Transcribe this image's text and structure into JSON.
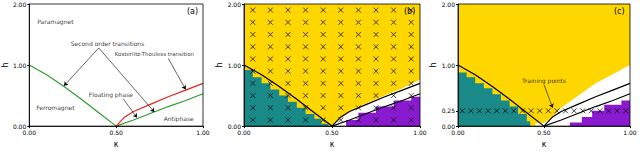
{
  "chart_data": [
    {
      "type": "line",
      "title": "(a)",
      "xlabel": "κ",
      "ylabel": "h",
      "xlim": [
        0,
        1
      ],
      "ylim": [
        0,
        2
      ],
      "xticks": [
        {
          "value": 0,
          "label": "0.00"
        },
        {
          "value": 0.5,
          "label": "0.50"
        },
        {
          "value": 1,
          "label": "1.00"
        }
      ],
      "yticks": [
        {
          "value": 0,
          "label": "0.00"
        },
        {
          "value": 1,
          "label": "1.00"
        },
        {
          "value": 2,
          "label": "2.00"
        }
      ],
      "series": [
        {
          "type": "line",
          "color": "#2e9e2e",
          "x": [
            0,
            0.1,
            0.2,
            0.3,
            0.4,
            0.5
          ],
          "values": [
            1.0,
            0.84,
            0.65,
            0.44,
            0.22,
            0.0
          ]
        },
        {
          "type": "line",
          "color": "#2e9e2e",
          "x": [
            0.5,
            0.6,
            0.7,
            0.8,
            0.9,
            1.0
          ],
          "values": [
            0,
            0.1,
            0.21,
            0.32,
            0.42,
            0.53
          ]
        },
        {
          "type": "line",
          "color": "#e8251c",
          "x": [
            0.5,
            0.55,
            0.6,
            0.7,
            0.8,
            0.9,
            1.0
          ],
          "values": [
            0,
            0.15,
            0.24,
            0.36,
            0.48,
            0.59,
            0.7
          ]
        }
      ],
      "annotations": [
        "Paramagnet",
        "Ferromagnet",
        "Floating phase",
        "Antiphase",
        "Second order transitions",
        "Kosterlitz-Thouless transition"
      ]
    },
    {
      "type": "region",
      "title": "(b)",
      "xlabel": "κ",
      "ylabel": "h",
      "xlim": [
        0,
        1
      ],
      "ylim": [
        0,
        2
      ],
      "xticks": [
        {
          "value": 0,
          "label": "0.00"
        },
        {
          "value": 0.5,
          "label": "0.50"
        },
        {
          "value": 1,
          "label": "1.00"
        }
      ],
      "yticks": [
        {
          "value": 0,
          "label": "0.00"
        },
        {
          "value": 1,
          "label": "1.00"
        },
        {
          "value": 2,
          "label": "2.00"
        }
      ],
      "regions": [
        {
          "color": "#ffd700",
          "x": [
            0,
            1,
            1,
            0
          ],
          "values": [
            0,
            0,
            2,
            2
          ]
        },
        {
          "color": "#ffffff",
          "x": [
            0.5,
            1,
            1,
            0.9,
            0.8,
            0.7,
            0.6,
            0.55
          ],
          "values": [
            0,
            0,
            0.76,
            0.62,
            0.5,
            0.38,
            0.24,
            0.12
          ]
        },
        {
          "color": "#1a8a88",
          "x": [
            0,
            0.48,
            0.48,
            0.44,
            0.44,
            0.4,
            0.4,
            0.35,
            0.35,
            0.3,
            0.3,
            0.25,
            0.25,
            0.2,
            0.2,
            0.15,
            0.15,
            0.1,
            0.1,
            0.05,
            0.05,
            0
          ],
          "values": [
            0,
            0,
            0.04,
            0.04,
            0.12,
            0.12,
            0.2,
            0.2,
            0.3,
            0.3,
            0.4,
            0.4,
            0.5,
            0.5,
            0.6,
            0.6,
            0.7,
            0.7,
            0.8,
            0.8,
            0.92,
            0.92
          ]
        },
        {
          "color": "#8a1ad0",
          "x": [
            0.58,
            1,
            1,
            0.95,
            0.95,
            0.85,
            0.85,
            0.75,
            0.75,
            0.65,
            0.65,
            0.58
          ],
          "values": [
            0,
            0,
            0.48,
            0.48,
            0.42,
            0.42,
            0.32,
            0.32,
            0.22,
            0.22,
            0.1,
            0.1
          ]
        }
      ],
      "series": [
        {
          "type": "line",
          "color": "#000000",
          "x": [
            0,
            0.1,
            0.2,
            0.3,
            0.4,
            0.5
          ],
          "values": [
            1.0,
            0.84,
            0.65,
            0.44,
            0.22,
            0.0
          ]
        },
        {
          "type": "line",
          "color": "#000000",
          "x": [
            0.5,
            0.6,
            0.7,
            0.8,
            0.9,
            1.0
          ],
          "values": [
            0,
            0.1,
            0.21,
            0.32,
            0.42,
            0.53
          ]
        },
        {
          "type": "line",
          "color": "#000000",
          "x": [
            0.5,
            0.55,
            0.6,
            0.7,
            0.8,
            0.9,
            1.0
          ],
          "values": [
            0,
            0.15,
            0.24,
            0.36,
            0.48,
            0.59,
            0.7
          ]
        },
        {
          "type": "scatter",
          "marker": "x",
          "color": "#000000",
          "x": [
            0.05,
            0.15,
            0.25,
            0.35,
            0.45,
            0.55,
            0.65,
            0.75,
            0.85,
            0.95,
            0.05,
            0.15,
            0.25,
            0.35,
            0.45,
            0.55,
            0.65,
            0.75,
            0.85,
            0.95,
            0.05,
            0.15,
            0.25,
            0.35,
            0.45,
            0.55,
            0.65,
            0.75,
            0.85,
            0.95,
            0.05,
            0.15,
            0.25,
            0.35,
            0.45,
            0.55,
            0.65,
            0.75,
            0.85,
            0.95,
            0.05,
            0.15,
            0.25,
            0.35,
            0.45,
            0.55,
            0.65,
            0.75,
            0.85,
            0.95,
            0.05,
            0.15,
            0.25,
            0.35,
            0.45,
            0.55,
            0.65,
            0.75,
            0.85,
            0.95,
            0.05,
            0.15,
            0.25,
            0.35,
            0.45,
            0.55,
            0.65,
            0.75,
            0.85,
            0.95,
            0.05,
            0.15,
            0.25,
            0.35,
            0.45,
            0.55,
            0.65,
            0.75,
            0.85,
            0.95,
            0.05,
            0.15,
            0.25,
            0.35,
            0.45,
            0.55,
            0.65,
            0.75,
            0.85,
            0.95,
            0.05,
            0.15,
            0.25,
            0.35,
            0.45,
            0.55,
            0.65,
            0.75,
            0.85,
            0.95
          ],
          "values": [
            0.1,
            0.1,
            0.1,
            0.1,
            0.1,
            0.1,
            0.1,
            0.1,
            0.1,
            0.1,
            0.3,
            0.3,
            0.3,
            0.3,
            0.3,
            0.3,
            0.3,
            0.3,
            0.3,
            0.3,
            0.5,
            0.5,
            0.5,
            0.5,
            0.5,
            0.5,
            0.5,
            0.5,
            0.5,
            0.5,
            0.7,
            0.7,
            0.7,
            0.7,
            0.7,
            0.7,
            0.7,
            0.7,
            0.7,
            0.7,
            0.9,
            0.9,
            0.9,
            0.9,
            0.9,
            0.9,
            0.9,
            0.9,
            0.9,
            0.9,
            1.1,
            1.1,
            1.1,
            1.1,
            1.1,
            1.1,
            1.1,
            1.1,
            1.1,
            1.1,
            1.3,
            1.3,
            1.3,
            1.3,
            1.3,
            1.3,
            1.3,
            1.3,
            1.3,
            1.3,
            1.5,
            1.5,
            1.5,
            1.5,
            1.5,
            1.5,
            1.5,
            1.5,
            1.5,
            1.5,
            1.7,
            1.7,
            1.7,
            1.7,
            1.7,
            1.7,
            1.7,
            1.7,
            1.7,
            1.7,
            1.9,
            1.9,
            1.9,
            1.9,
            1.9,
            1.9,
            1.9,
            1.9,
            1.9,
            1.9
          ]
        }
      ]
    },
    {
      "type": "region",
      "title": "(c)",
      "xlabel": "κ",
      "ylabel": "h",
      "xlim": [
        0,
        1
      ],
      "ylim": [
        0,
        2
      ],
      "xticks": [
        {
          "value": 0,
          "label": "0.00"
        },
        {
          "value": 0.5,
          "label": "0.50"
        },
        {
          "value": 1,
          "label": "1.00"
        }
      ],
      "yticks": [
        {
          "value": 0,
          "label": "0.00"
        },
        0.25,
        {
          "value": 1,
          "label": "1.00"
        },
        {
          "value": 2,
          "label": "2.00"
        }
      ],
      "regions": [
        {
          "color": "#ffd700",
          "x": [
            0,
            1,
            1,
            0
          ],
          "values": [
            0,
            0,
            2,
            2
          ]
        },
        {
          "color": "#ffffff",
          "x": [
            0.42,
            1,
            1,
            0.9,
            0.8,
            0.7,
            0.6,
            0.55,
            0.5,
            0.45,
            0.45
          ],
          "values": [
            0,
            0,
            1.0,
            0.85,
            0.7,
            0.5,
            0.3,
            0.15,
            0.05,
            0.05,
            0
          ]
        },
        {
          "color": "#1a8a88",
          "x": [
            0,
            0.42,
            0.42,
            0.4,
            0.4,
            0.35,
            0.35,
            0.3,
            0.3,
            0.25,
            0.25,
            0.2,
            0.2,
            0.15,
            0.15,
            0.1,
            0.1,
            0.05,
            0.05,
            0
          ],
          "values": [
            0,
            0,
            0.08,
            0.08,
            0.2,
            0.2,
            0.32,
            0.32,
            0.42,
            0.42,
            0.52,
            0.52,
            0.62,
            0.62,
            0.7,
            0.7,
            0.8,
            0.8,
            0.88,
            0.88
          ]
        },
        {
          "color": "#8a1ad0",
          "x": [
            0.65,
            1,
            1,
            0.95,
            0.95,
            0.85,
            0.85,
            0.78,
            0.78,
            0.72,
            0.72,
            0.65
          ],
          "values": [
            0,
            0,
            0.42,
            0.42,
            0.35,
            0.35,
            0.25,
            0.25,
            0.15,
            0.15,
            0.06,
            0.06
          ]
        }
      ],
      "series": [
        {
          "type": "line",
          "color": "#000000",
          "x": [
            0,
            0.1,
            0.2,
            0.3,
            0.4,
            0.5
          ],
          "values": [
            1.0,
            0.84,
            0.65,
            0.44,
            0.22,
            0.0
          ]
        },
        {
          "type": "line",
          "color": "#000000",
          "x": [
            0.5,
            0.6,
            0.7,
            0.8,
            0.9,
            1.0
          ],
          "values": [
            0,
            0.1,
            0.21,
            0.32,
            0.42,
            0.53
          ]
        },
        {
          "type": "line",
          "color": "#000000",
          "x": [
            0.5,
            0.55,
            0.6,
            0.7,
            0.8,
            0.9,
            1.0
          ],
          "values": [
            0,
            0.15,
            0.24,
            0.36,
            0.48,
            0.59,
            0.7
          ]
        },
        {
          "type": "scatter",
          "marker": "x",
          "color": "#000000",
          "x": [
            0.025,
            0.075,
            0.125,
            0.175,
            0.225,
            0.275,
            0.325,
            0.375,
            0.425,
            0.475,
            0.525,
            0.575,
            0.625,
            0.675,
            0.725,
            0.775,
            0.825,
            0.875,
            0.925,
            0.975
          ],
          "values": [
            0.25,
            0.25,
            0.25,
            0.25,
            0.25,
            0.25,
            0.25,
            0.25,
            0.25,
            0.25,
            0.25,
            0.25,
            0.25,
            0.25,
            0.25,
            0.25,
            0.25,
            0.25,
            0.25,
            0.25
          ]
        }
      ],
      "annotations": [
        "Training points"
      ]
    }
  ]
}
